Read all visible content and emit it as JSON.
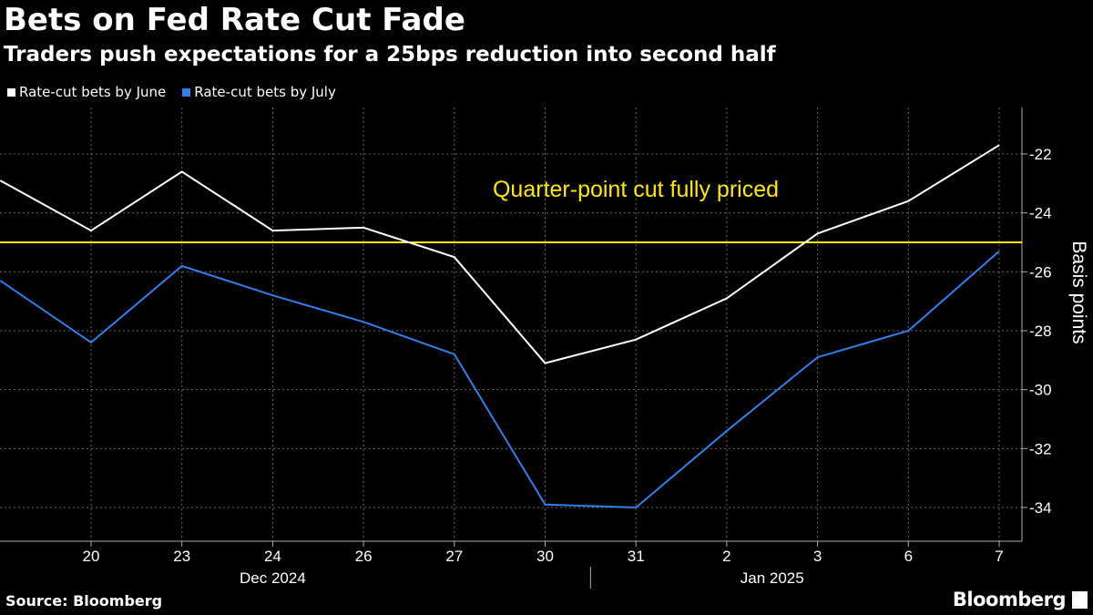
{
  "title": "Bets on Fed Rate Cut Fade",
  "subtitle": "Traders push expectations for a 25bps reduction into second half",
  "source": "Source: Bloomberg",
  "brand": "Bloomberg",
  "colors": {
    "background": "#000000",
    "june": "#ffffff",
    "july": "#2f80ed",
    "reference": "#ffe900",
    "grid": "#666666",
    "axis": "#aaaaaa"
  },
  "chart_data": {
    "type": "line",
    "title": "Bets on Fed Rate Cut Fade",
    "subtitle": "Traders push expectations for a 25bps reduction into second half",
    "ylabel": "Basis points",
    "xlabel": "",
    "ylim": [
      -35.2,
      -20.7
    ],
    "yticks": [
      -22,
      -24,
      -26,
      -28,
      -30,
      -32,
      -34
    ],
    "ytick_labels": [
      "-22",
      "-24",
      "-26",
      "-28",
      "-30",
      "-32",
      "-34"
    ],
    "x_labels": [
      "20",
      "23",
      "24",
      "26",
      "27",
      "30",
      "31",
      "2",
      "3",
      "6",
      "7"
    ],
    "month_labels": [
      {
        "label": "Dec 2024",
        "start": 0,
        "end": 4
      },
      {
        "label": "Jan 2025",
        "start": 5,
        "end": 10
      }
    ],
    "month_divider_after": 5,
    "x": [
      -1,
      0,
      1,
      2,
      3,
      4,
      5,
      6,
      7,
      8,
      9,
      10
    ],
    "series": [
      {
        "name": "Rate-cut bets by June",
        "color": "#ffffff",
        "values": [
          -22.9,
          -24.6,
          -22.6,
          -24.6,
          -24.5,
          -25.5,
          -29.1,
          -28.3,
          -26.9,
          -24.7,
          -23.6,
          -21.7
        ]
      },
      {
        "name": "Rate-cut bets by July",
        "color": "#2f80ed",
        "values": [
          -26.3,
          -28.4,
          -25.8,
          -26.8,
          -27.7,
          -28.8,
          -33.9,
          -34.0,
          -31.4,
          -28.9,
          -28.0,
          -25.3
        ]
      }
    ],
    "reference_line": {
      "value": -25,
      "color": "#ffe900",
      "label": "Quarter-point cut fully priced"
    },
    "grid": true,
    "legend": "top-left"
  }
}
